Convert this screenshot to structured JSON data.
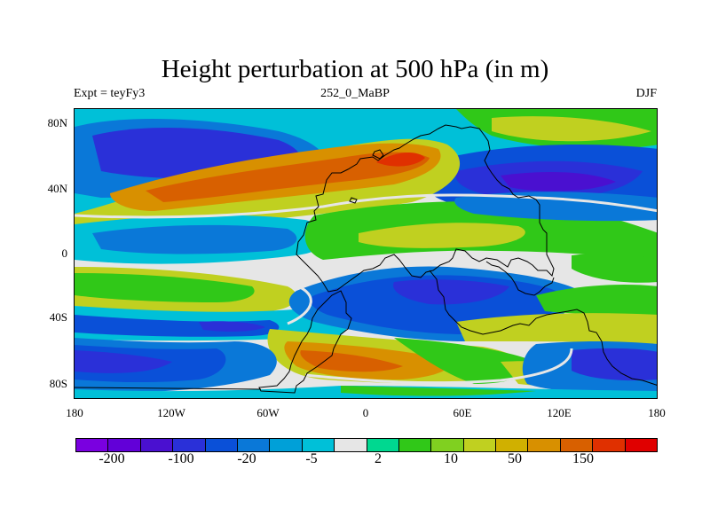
{
  "title": "Height perturbation at 500 hPa (in m)",
  "subtitle_left": "Expt = teyFy3",
  "subtitle_center": "252_0_MaBP",
  "subtitle_right": "DJF",
  "y_ticks": [
    "80N",
    "40N",
    "0",
    "40S",
    "80S"
  ],
  "x_ticks": [
    "180",
    "120W",
    "60W",
    "0",
    "60E",
    "120E",
    "180"
  ],
  "colorbar": {
    "colors": [
      "#7a00e0",
      "#6200d8",
      "#4a10d0",
      "#2a30d8",
      "#0a50d8",
      "#0a78d8",
      "#00a0d8",
      "#00c0d8",
      "#e6e6e6",
      "#00d890",
      "#30c818",
      "#80d020",
      "#c0d020",
      "#d0b000",
      "#d89000",
      "#d86000",
      "#e03000",
      "#e00000"
    ],
    "labels": [
      "-200",
      "-100",
      "-20",
      "-5",
      "2",
      "10",
      "50",
      "150"
    ]
  },
  "map": {
    "background": "#e6e6e6",
    "bands": [
      {
        "color": "#30c818"
      },
      {
        "color": "#00c0d8"
      },
      {
        "color": "#0a78d8"
      },
      {
        "color": "#2a30d8"
      },
      {
        "color": "#c0d020"
      },
      {
        "color": "#d89000"
      },
      {
        "color": "#d86000"
      },
      {
        "color": "#e03000"
      }
    ]
  }
}
